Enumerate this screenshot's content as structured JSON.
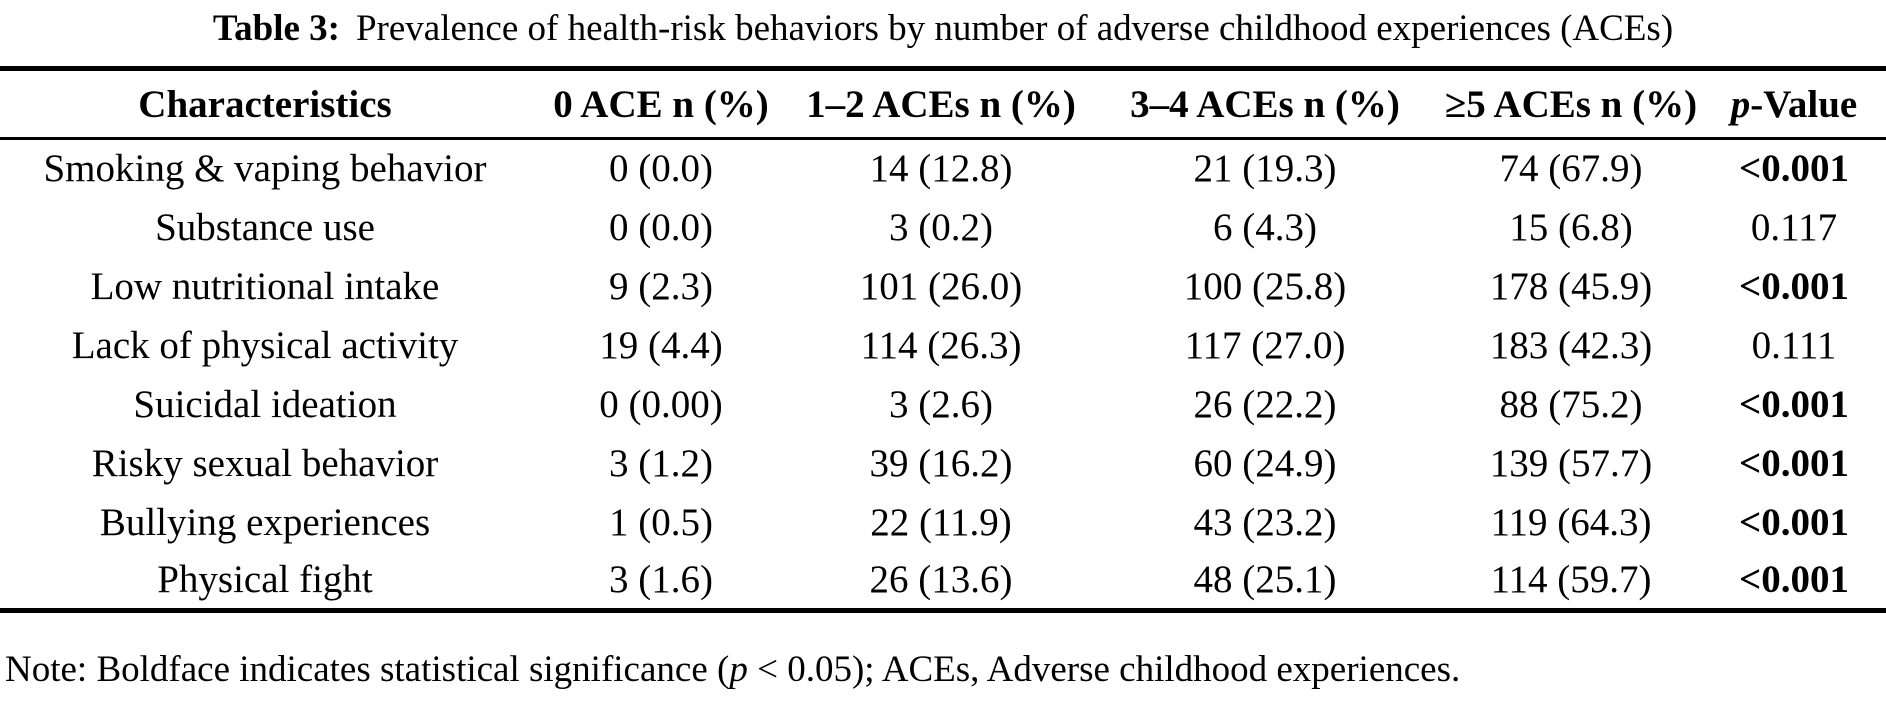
{
  "title": {
    "label": "Table 3:",
    "text": "Prevalence of health-risk behaviors by number of adverse childhood experiences (ACEs)"
  },
  "table": {
    "header": {
      "characteristics": "Characteristics",
      "ace0": "0 ACE n (%)",
      "ace12": "1–2 ACEs n (%)",
      "ace34": "3–4 ACEs n (%)",
      "ace5": "≥5 ACEs n (%)",
      "p_italic": "p",
      "p_rest": "-Value"
    },
    "rows": [
      {
        "label": "Smoking & vaping behavior",
        "c0": "0 (0.0)",
        "c1": "14 (12.8)",
        "c2": "21 (19.3)",
        "c3": "74 (67.9)",
        "p": "<0.001",
        "significant": true
      },
      {
        "label": "Substance use",
        "c0": "0 (0.0)",
        "c1": "3 (0.2)",
        "c2": "6 (4.3)",
        "c3": "15 (6.8)",
        "p": "0.117",
        "significant": false
      },
      {
        "label": "Low nutritional intake",
        "c0": "9 (2.3)",
        "c1": "101 (26.0)",
        "c2": "100 (25.8)",
        "c3": "178 (45.9)",
        "p": "<0.001",
        "significant": true
      },
      {
        "label": "Lack of physical activity",
        "c0": "19 (4.4)",
        "c1": "114 (26.3)",
        "c2": "117 (27.0)",
        "c3": "183 (42.3)",
        "p": "0.111",
        "significant": false
      },
      {
        "label": "Suicidal ideation",
        "c0": "0 (0.00)",
        "c1": "3 (2.6)",
        "c2": "26 (22.2)",
        "c3": "88 (75.2)",
        "p": "<0.001",
        "significant": true
      },
      {
        "label": "Risky sexual behavior",
        "c0": "3 (1.2)",
        "c1": "39 (16.2)",
        "c2": "60 (24.9)",
        "c3": "139 (57.7)",
        "p": "<0.001",
        "significant": true
      },
      {
        "label": "Bullying experiences",
        "c0": "1 (0.5)",
        "c1": "22 (11.9)",
        "c2": "43 (23.2)",
        "c3": "119 (64.3)",
        "p": "<0.001",
        "significant": true
      },
      {
        "label": "Physical fight",
        "c0": "3 (1.6)",
        "c1": "26 (13.6)",
        "c2": "48 (25.1)",
        "c3": "114 (59.7)",
        "p": "<0.001",
        "significant": true
      }
    ]
  },
  "note": {
    "prefix": "Note: Boldface indicates statistical significance (",
    "p": "p",
    "suffix": " < 0.05); ACEs, Adverse childhood experiences."
  },
  "colors": {
    "text": "#000000",
    "background": "#ffffff",
    "rule": "#000000"
  }
}
